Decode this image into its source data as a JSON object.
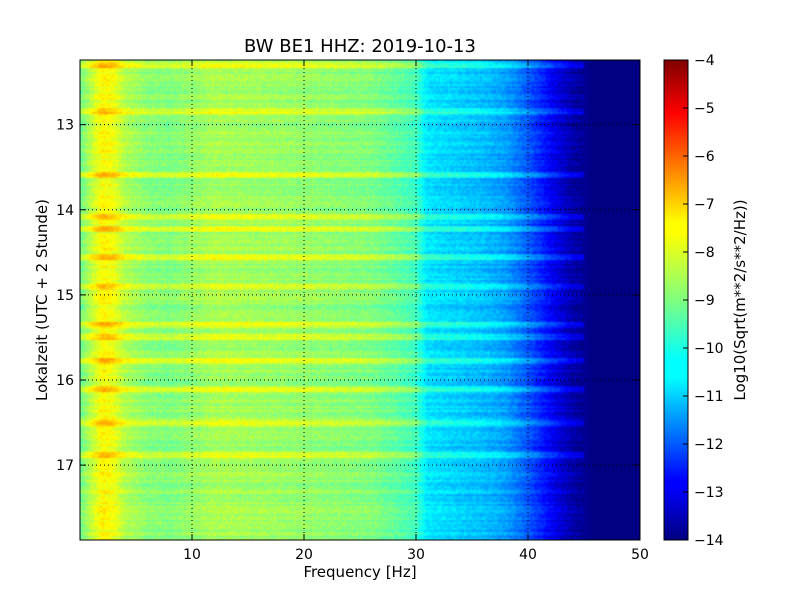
{
  "chart_data": {
    "type": "heatmap",
    "title": "BW BE1 HHZ: 2019-10-13",
    "xlabel": "Frequency [Hz]",
    "ylabel": "Lokalzeit (UTC + 2 Stunde)",
    "xlim": [
      0,
      50
    ],
    "ylim": [
      17.88,
      12.24
    ],
    "x_ticks": [
      10,
      20,
      30,
      40,
      50
    ],
    "y_ticks": [
      13,
      14,
      15,
      16,
      17
    ],
    "grid": true,
    "colormap": "jet",
    "colorbar": {
      "label": "Log10(Sqrt(m**2/s**2/Hz))",
      "range": [
        -14,
        -4
      ],
      "ticks": [
        -4,
        -5,
        -6,
        -7,
        -8,
        -9,
        -10,
        -11,
        -12,
        -13,
        -14
      ]
    },
    "frequency_profile": {
      "frequency": [
        0,
        1,
        2,
        3,
        4,
        6,
        8,
        12,
        20,
        26,
        30,
        31,
        36,
        38,
        40,
        42,
        44,
        46,
        48,
        50
      ],
      "value": [
        -9.2,
        -8.4,
        -7.7,
        -7.9,
        -8.5,
        -8.9,
        -9.0,
        -8.6,
        -8.8,
        -9.0,
        -9.6,
        -10.5,
        -10.9,
        -11.2,
        -11.9,
        -12.8,
        -13.6,
        -14,
        -14,
        -14
      ]
    },
    "high_energy_times": [
      12.3,
      12.83,
      13.6,
      14.08,
      14.22,
      14.55,
      14.9,
      15.35,
      15.5,
      15.78,
      16.1,
      16.5,
      16.88
    ]
  }
}
